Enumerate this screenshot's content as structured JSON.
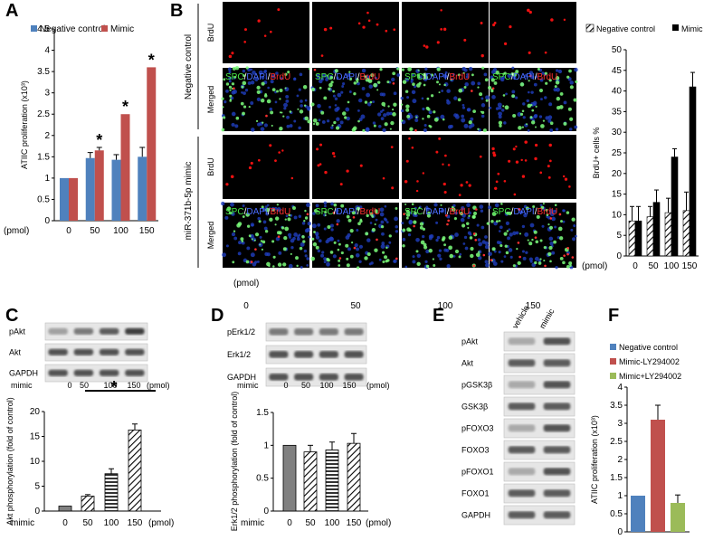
{
  "panels": {
    "A": "A",
    "B": "B",
    "C": "C",
    "D": "D",
    "E": "E",
    "F": "F"
  },
  "colors": {
    "neg": "#4f81bd",
    "mimic": "#c0504d",
    "green": "#9bbb59",
    "grey": "#808080"
  },
  "chart_data": [
    {
      "id": "A",
      "type": "bar",
      "ylabel": "ATIIC proliferation (x10³)",
      "xprefix": "(pmol)",
      "categories": [
        "0",
        "50",
        "100",
        "150"
      ],
      "series": [
        {
          "name": "Negative control",
          "values": [
            1.0,
            1.47,
            1.43,
            1.5
          ],
          "errors": [
            0,
            0.13,
            0.12,
            0.22
          ]
        },
        {
          "name": "Mimic",
          "values": [
            1.0,
            1.65,
            2.5,
            3.6
          ],
          "errors": [
            0,
            0.07,
            0.0,
            0.0
          ]
        }
      ],
      "significance": [
        "",
        "*",
        "*",
        "*"
      ],
      "ylim": [
        0,
        4.5
      ],
      "yticks": [
        0,
        0.5,
        1,
        1.5,
        2,
        2.5,
        3,
        3.5,
        4,
        4.5
      ],
      "legend": "top"
    },
    {
      "id": "B",
      "type": "bar",
      "ylabel": "BrdU+ cells %",
      "xprefix": "(pmol)",
      "categories": [
        "0",
        "50",
        "100",
        "150"
      ],
      "series": [
        {
          "name": "Negative control",
          "values": [
            8.5,
            9.5,
            10.5,
            11
          ],
          "errors": [
            3.5,
            2.5,
            3.5,
            4.5
          ]
        },
        {
          "name": "Mimic",
          "values": [
            8.5,
            13,
            24,
            41
          ],
          "errors": [
            3.5,
            3,
            2,
            3.5
          ]
        }
      ],
      "ylim": [
        0,
        50
      ],
      "yticks": [
        0,
        5,
        10,
        15,
        20,
        25,
        30,
        35,
        40,
        45,
        50
      ],
      "legend": "top"
    },
    {
      "id": "C",
      "type": "bar",
      "ylabel": "Akt phosphorylation (fold of control)",
      "xprefix": "mimic",
      "xsuffix": "(pmol)",
      "categories": [
        "0",
        "50",
        "100",
        "150"
      ],
      "values": [
        1,
        3,
        7.5,
        16.3
      ],
      "errors": [
        0,
        0.3,
        1.0,
        1.2
      ],
      "ylim": [
        0,
        20
      ],
      "yticks": [
        0,
        5,
        10,
        15,
        20
      ],
      "significance": "*"
    },
    {
      "id": "D",
      "type": "bar",
      "ylabel": "Erk1/2 phosphorylation (fold of control)",
      "xprefix": "mimic",
      "xsuffix": "(pmol)",
      "categories": [
        "0",
        "50",
        "100",
        "150"
      ],
      "values": [
        1.0,
        0.9,
        0.93,
        1.03
      ],
      "errors": [
        0,
        0.1,
        0.12,
        0.15
      ],
      "ylim": [
        0,
        1.5
      ],
      "yticks": [
        0,
        0.5,
        1,
        1.5
      ]
    },
    {
      "id": "F",
      "type": "bar",
      "ylabel": "ATIIC proliferation (x10³)",
      "categories": [
        "Negative control",
        "Mimic-LY294002",
        "Mimic+LY294002"
      ],
      "values": [
        1.0,
        3.1,
        0.8
      ],
      "errors": [
        0,
        0.4,
        0.22
      ],
      "ylim": [
        0,
        4
      ],
      "yticks": [
        0,
        0.5,
        1,
        1.5,
        2,
        2.5,
        3,
        3.5,
        4
      ],
      "legend": "top"
    }
  ],
  "micrographs": {
    "group_neg": "Negative control",
    "group_mimic": "miR-371b-5p mimic",
    "row_brdu": "BrdU",
    "row_merged": "Merged",
    "merged_label": {
      "spc": "SPC",
      "slash1": "/",
      "dapi": "DAPI",
      "slash2": "/",
      "brdu": "BrdU"
    },
    "pmol_label": "(pmol)",
    "columns": [
      "0",
      "50",
      "100",
      "150"
    ]
  },
  "blots": {
    "C": {
      "rows": [
        "pAkt",
        "Akt",
        "GAPDH"
      ],
      "xprefix": "mimic",
      "cols": [
        "0",
        "50",
        "100",
        "150"
      ],
      "suffix": "(pmol)"
    },
    "D": {
      "rows": [
        "pErk1/2",
        "Erk1/2",
        "GAPDH"
      ],
      "xprefix": "mimic",
      "cols": [
        "0",
        "50",
        "100",
        "150"
      ],
      "suffix": "(pmol)"
    },
    "E": {
      "rows": [
        "pAkt",
        "Akt",
        "pGSK3β",
        "GSK3β",
        "pFOXO3",
        "FOXO3",
        "pFOXO1",
        "FOXO1",
        "GAPDH"
      ],
      "cols": [
        "vehicle",
        "mimic"
      ]
    }
  }
}
